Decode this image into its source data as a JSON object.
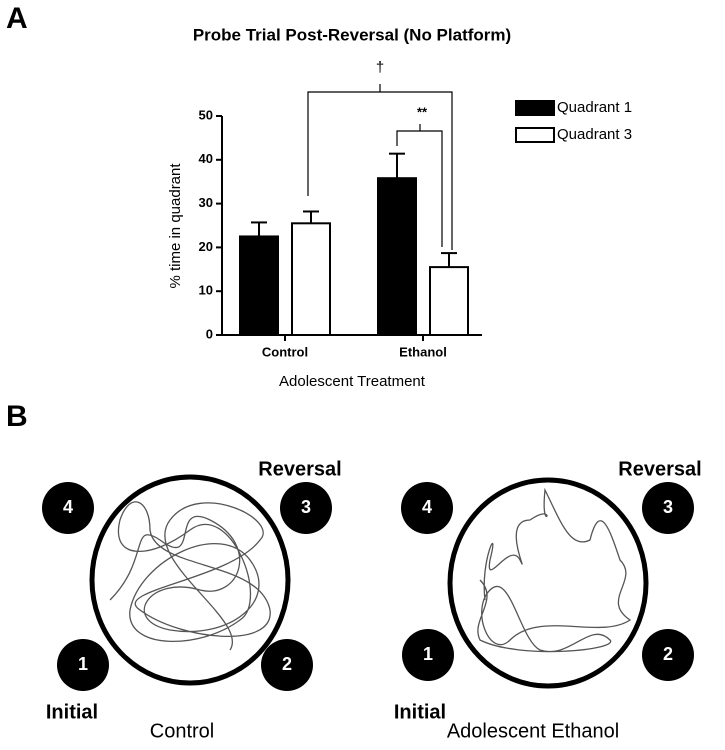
{
  "panel_labels": [
    "A",
    "B"
  ],
  "chart_data": {
    "type": "bar",
    "title": "Probe Trial Post-Reversal (No Platform)",
    "xlabel": "Adolescent Treatment",
    "ylabel": "% time in quadrant",
    "categories": [
      "Control",
      "Ethanol"
    ],
    "series": [
      {
        "name": "Quadrant 1",
        "color": "#000000",
        "values": [
          22.5,
          35.8
        ],
        "errors": [
          3.2,
          5.6
        ]
      },
      {
        "name": "Quadrant 3",
        "color": "#ffffff",
        "values": [
          25.5,
          15.5
        ],
        "errors": [
          2.7,
          3.2
        ]
      }
    ],
    "ylim": [
      0,
      50
    ],
    "yticks": [
      0,
      10,
      20,
      30,
      40,
      50
    ],
    "legend": "right",
    "annotations": [
      "†",
      "**"
    ]
  },
  "maze_panels": [
    {
      "caption": "Control",
      "quadrants": [
        "1",
        "2",
        "3",
        "4"
      ],
      "initial_label": "Initial",
      "reversal_label": "Reversal"
    },
    {
      "caption": "Adolescent Ethanol",
      "quadrants": [
        "1",
        "2",
        "3",
        "4"
      ],
      "initial_label": "Initial",
      "reversal_label": "Reversal"
    }
  ]
}
